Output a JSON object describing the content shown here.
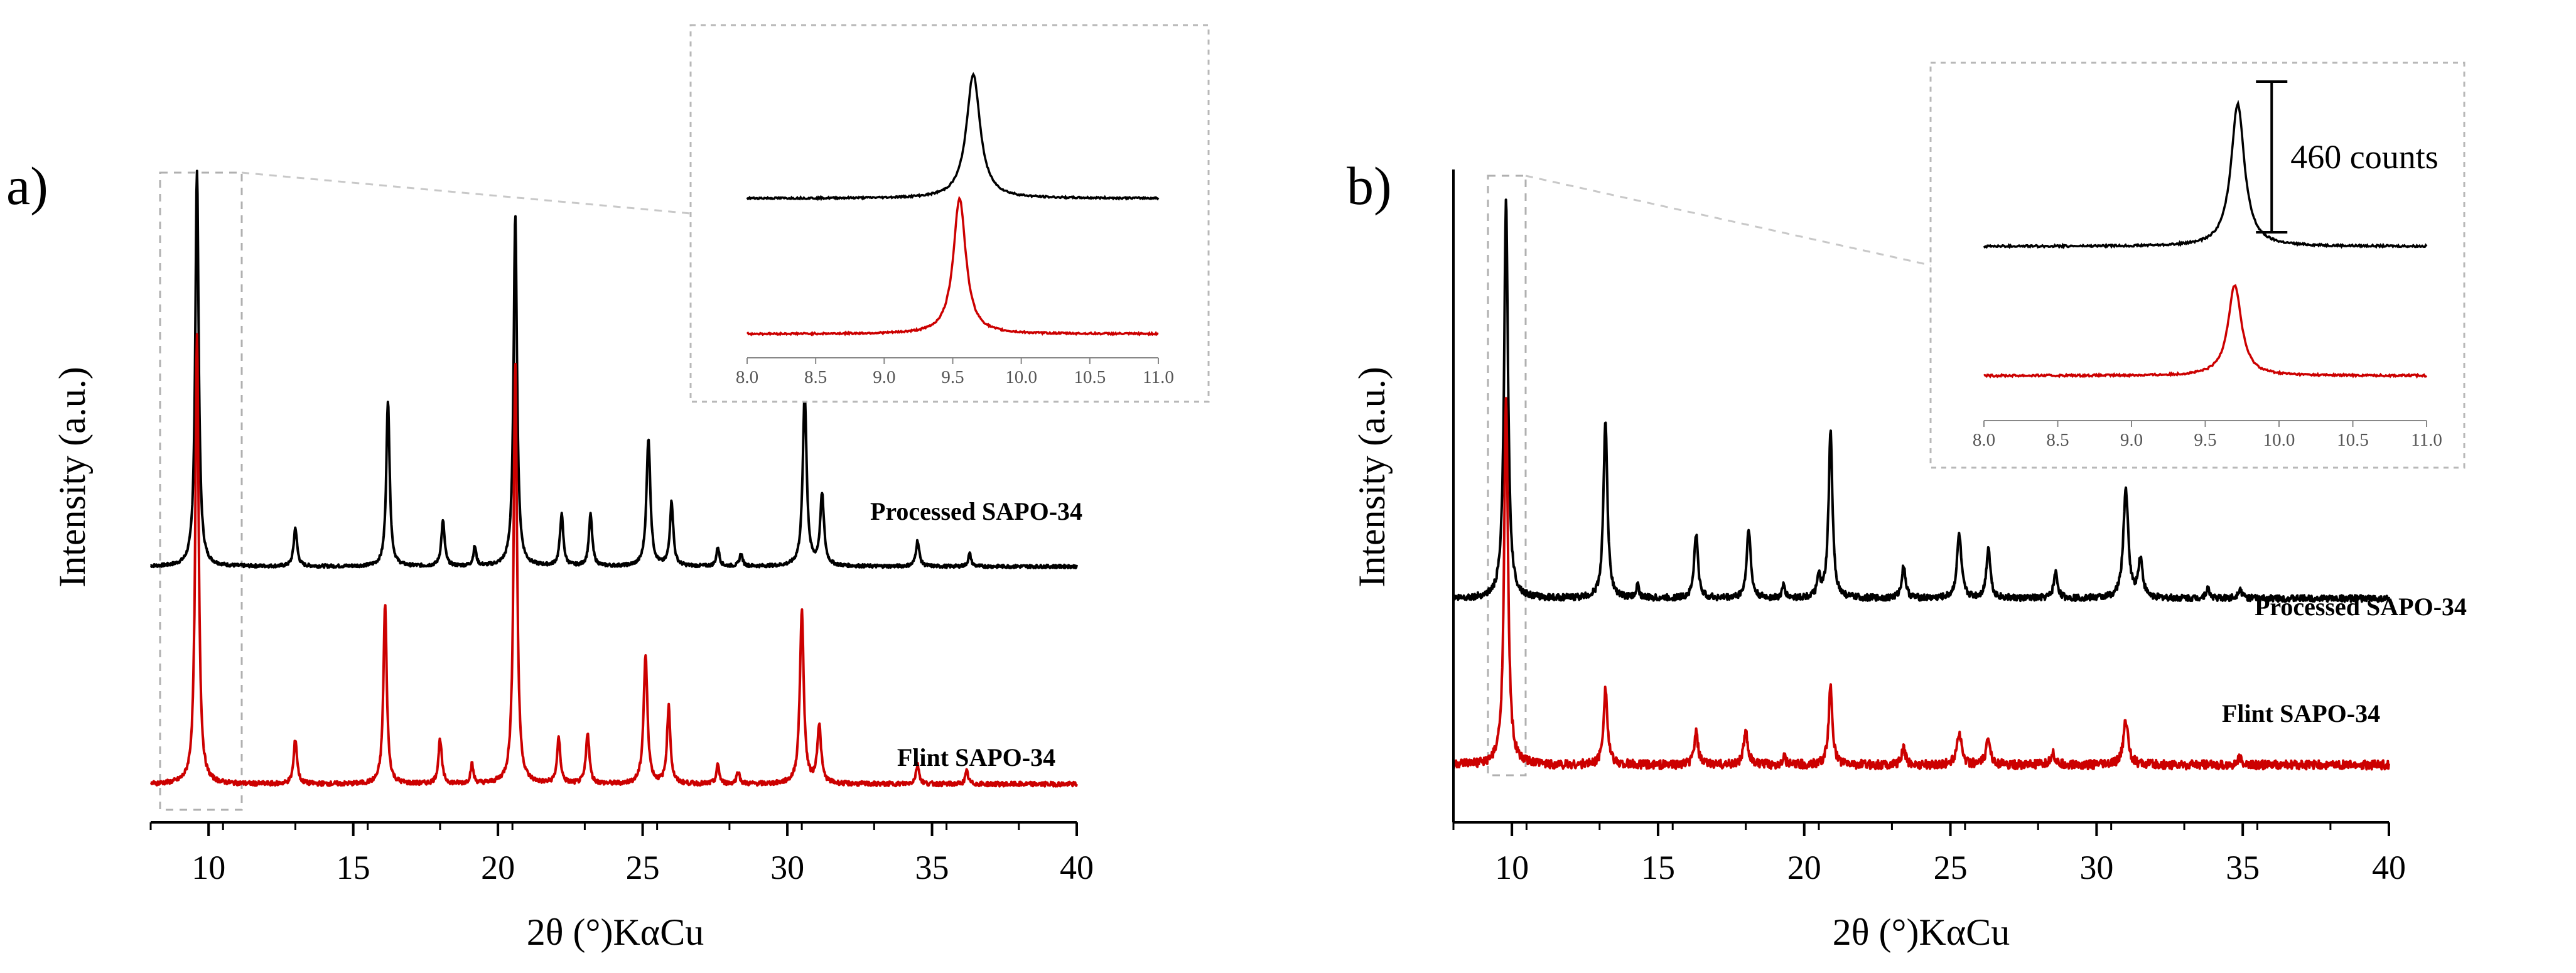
{
  "chart_data": [
    {
      "panel": "a)",
      "type": "line",
      "xlabel": "2θ (°)KαCu",
      "ylabel": "Intensity (a.u.)",
      "xlim": [
        8,
        40
      ],
      "xticks": [
        10,
        15,
        20,
        25,
        30,
        35,
        40
      ],
      "ylim": [
        0,
        100
      ],
      "yticks_shown": false,
      "series": [
        {
          "name": "Processed SAPO-34",
          "color": "#000000",
          "offset": 38,
          "noise": 0.25,
          "peaks": [
            [
              9.6,
              62,
              0.07
            ],
            [
              13.0,
              6,
              0.07
            ],
            [
              16.2,
              26,
              0.07
            ],
            [
              18.1,
              7,
              0.07
            ],
            [
              19.2,
              3,
              0.06
            ],
            [
              20.6,
              55,
              0.07
            ],
            [
              22.2,
              8,
              0.07
            ],
            [
              23.2,
              8,
              0.07
            ],
            [
              25.2,
              20,
              0.08
            ],
            [
              26.0,
              10,
              0.07
            ],
            [
              27.6,
              3,
              0.06
            ],
            [
              28.4,
              2,
              0.06
            ],
            [
              30.6,
              27,
              0.08
            ],
            [
              31.2,
              11,
              0.08
            ],
            [
              34.5,
              4,
              0.07
            ],
            [
              36.3,
              2,
              0.06
            ]
          ]
        },
        {
          "name": "Flint SAPO-34",
          "color": "#cc0000",
          "offset": 4,
          "noise": 0.35,
          "peaks": [
            [
              9.6,
              70,
              0.07
            ],
            [
              13.0,
              7,
              0.07
            ],
            [
              16.1,
              28,
              0.07
            ],
            [
              18.0,
              7,
              0.07
            ],
            [
              19.1,
              3,
              0.06
            ],
            [
              20.6,
              66,
              0.07
            ],
            [
              22.1,
              7,
              0.07
            ],
            [
              23.1,
              8,
              0.07
            ],
            [
              25.1,
              20,
              0.08
            ],
            [
              25.9,
              12,
              0.07
            ],
            [
              27.6,
              3,
              0.06
            ],
            [
              28.3,
              2,
              0.06
            ],
            [
              30.5,
              27,
              0.08
            ],
            [
              31.1,
              9,
              0.08
            ],
            [
              34.5,
              3,
              0.07
            ],
            [
              36.2,
              2,
              0.06
            ]
          ]
        }
      ],
      "inset": {
        "xlim": [
          8.0,
          11.0
        ],
        "xticks": [
          "8.0",
          "8.5",
          "9.0",
          "9.5",
          "10.0",
          "10.5",
          "11.0"
        ],
        "series": [
          {
            "name": "Processed SAPO-34",
            "color": "#000000",
            "peak_x": 9.65,
            "height": 44,
            "width": 0.06,
            "baseline": 52
          },
          {
            "name": "Flint SAPO-34",
            "color": "#cc0000",
            "peak_x": 9.55,
            "height": 48,
            "width": 0.055,
            "baseline": 4
          }
        ]
      }
    },
    {
      "panel": "b)",
      "type": "line",
      "xlabel": "2θ (°)KαCu",
      "ylabel": "Intensity (a.u.)",
      "xlim": [
        8,
        40
      ],
      "xticks": [
        10,
        15,
        20,
        25,
        30,
        35,
        40
      ],
      "ylim": [
        0,
        100
      ],
      "yticks_shown": false,
      "series": [
        {
          "name": "Processed SAPO-34",
          "color": "#000000",
          "offset": 33,
          "noise": 0.5,
          "peaks": [
            [
              9.8,
              62,
              0.08
            ],
            [
              13.2,
              28,
              0.08
            ],
            [
              14.3,
              2,
              0.06
            ],
            [
              16.3,
              10,
              0.08
            ],
            [
              18.1,
              11,
              0.08
            ],
            [
              19.3,
              2,
              0.06
            ],
            [
              20.5,
              3,
              0.07
            ],
            [
              20.9,
              26,
              0.08
            ],
            [
              23.4,
              5,
              0.08
            ],
            [
              25.3,
              10,
              0.09
            ],
            [
              26.3,
              8,
              0.08
            ],
            [
              28.6,
              4,
              0.08
            ],
            [
              31.0,
              17,
              0.1
            ],
            [
              31.5,
              6,
              0.09
            ],
            [
              33.8,
              1.5,
              0.08
            ],
            [
              34.9,
              1.5,
              0.08
            ]
          ]
        },
        {
          "name": "Flint SAPO-34",
          "color": "#cc0000",
          "offset": 7,
          "noise": 0.7,
          "peaks": [
            [
              9.8,
              57,
              0.08
            ],
            [
              13.2,
              12,
              0.08
            ],
            [
              16.3,
              5,
              0.08
            ],
            [
              18.0,
              5,
              0.09
            ],
            [
              19.3,
              1.5,
              0.06
            ],
            [
              20.9,
              12,
              0.08
            ],
            [
              23.4,
              2.5,
              0.08
            ],
            [
              25.3,
              5,
              0.1
            ],
            [
              26.3,
              4,
              0.09
            ],
            [
              28.5,
              2,
              0.08
            ],
            [
              31.0,
              7,
              0.1
            ],
            [
              34.9,
              1,
              0.08
            ]
          ]
        }
      ],
      "inset": {
        "xlim": [
          8.0,
          11.0
        ],
        "xticks": [
          "8.0",
          "8.5",
          "9.0",
          "9.5",
          "10.0",
          "10.5",
          "11.0"
        ],
        "scale_bar": "460 counts",
        "series": [
          {
            "name": "Processed SAPO-34",
            "color": "#000000",
            "peak_x": 9.72,
            "height": 44,
            "width": 0.055,
            "baseline": 50
          },
          {
            "name": "Flint SAPO-34",
            "color": "#cc0000",
            "peak_x": 9.7,
            "height": 28,
            "width": 0.055,
            "baseline": 10
          }
        ]
      }
    }
  ]
}
